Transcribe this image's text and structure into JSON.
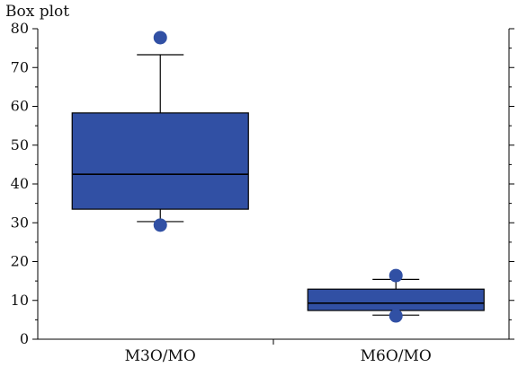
{
  "chart_data": {
    "type": "box",
    "title": "Box plot",
    "xlabel": "",
    "ylabel": "",
    "ylim": [
      0,
      80
    ],
    "yticks": [
      0,
      10,
      20,
      30,
      40,
      50,
      60,
      70,
      80
    ],
    "categories": [
      "M3O/MO",
      "M6O/MO"
    ],
    "boxes": [
      {
        "q1": 33.5,
        "median": 42.5,
        "q3": 58.3,
        "whisker_low": 30.3,
        "whisker_high": 73.3,
        "outliers": [
          77.7,
          29.4
        ]
      },
      {
        "q1": 7.4,
        "median": 9.3,
        "q3": 12.9,
        "whisker_low": 6.2,
        "whisker_high": 15.4,
        "outliers": [
          16.4,
          6.0
        ]
      }
    ],
    "grid": false,
    "box_color": "#3150a4",
    "outline_color": "#000000"
  }
}
